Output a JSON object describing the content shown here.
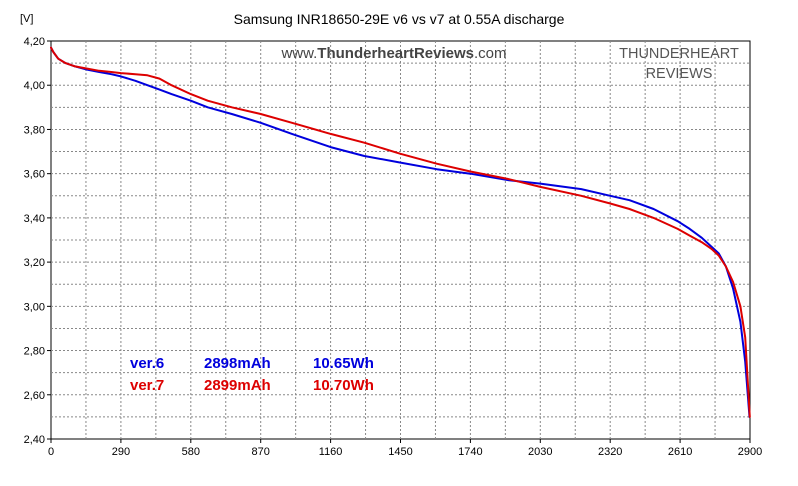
{
  "chart_data": {
    "type": "line",
    "title": "Samsung INR18650-29E v6 vs v7 at 0.55A discharge",
    "ylabel": "[V]",
    "xlabel": "",
    "xlim": [
      0,
      2900
    ],
    "ylim": [
      2.4,
      4.2
    ],
    "x_ticks": [
      "0",
      "290",
      "580",
      "870",
      "1160",
      "1450",
      "1740",
      "2030",
      "2320",
      "2610",
      "2900"
    ],
    "y_ticks": [
      "4,20",
      "4,00",
      "3,80",
      "3,60",
      "3,40",
      "3,20",
      "3,00",
      "2,80",
      "2,60",
      "2,40"
    ],
    "grid": true,
    "watermark_url_prefix": "www.",
    "watermark_url_brand": "ThunderheartReviews",
    "watermark_url_suffix": ".com",
    "watermark_brand_line1": "THUNDERHEART",
    "watermark_brand_line2": "REVIEWS",
    "series": [
      {
        "name": "ver.6",
        "capacity": "2898mAh",
        "energy": "10.65Wh",
        "color": "#0000dd",
        "x": [
          0,
          10,
          30,
          60,
          100,
          150,
          200,
          250,
          290,
          350,
          400,
          450,
          500,
          580,
          650,
          750,
          870,
          1000,
          1160,
          1300,
          1450,
          1600,
          1740,
          1900,
          2030,
          2200,
          2320,
          2400,
          2500,
          2600,
          2650,
          2700,
          2740,
          2770,
          2800,
          2830,
          2860,
          2880,
          2898
        ],
        "values": [
          4.17,
          4.15,
          4.12,
          4.1,
          4.085,
          4.07,
          4.06,
          4.05,
          4.04,
          4.02,
          4.0,
          3.98,
          3.96,
          3.93,
          3.9,
          3.87,
          3.83,
          3.78,
          3.72,
          3.68,
          3.65,
          3.62,
          3.6,
          3.57,
          3.555,
          3.53,
          3.5,
          3.48,
          3.44,
          3.385,
          3.35,
          3.31,
          3.27,
          3.24,
          3.18,
          3.08,
          2.93,
          2.75,
          2.5
        ]
      },
      {
        "name": "ver.7",
        "capacity": "2899mAh",
        "energy": "10.70Wh",
        "color": "#dd0000",
        "x": [
          0,
          10,
          30,
          60,
          100,
          150,
          200,
          250,
          290,
          350,
          400,
          450,
          500,
          580,
          650,
          750,
          870,
          1000,
          1160,
          1300,
          1450,
          1600,
          1740,
          1900,
          2030,
          2200,
          2320,
          2400,
          2500,
          2600,
          2650,
          2700,
          2740,
          2770,
          2800,
          2830,
          2860,
          2880,
          2899
        ],
        "values": [
          4.17,
          4.15,
          4.12,
          4.1,
          4.085,
          4.075,
          4.065,
          4.06,
          4.055,
          4.05,
          4.045,
          4.03,
          4.0,
          3.96,
          3.93,
          3.9,
          3.87,
          3.83,
          3.78,
          3.74,
          3.69,
          3.645,
          3.61,
          3.575,
          3.54,
          3.5,
          3.465,
          3.44,
          3.4,
          3.35,
          3.32,
          3.29,
          3.26,
          3.23,
          3.18,
          3.11,
          3.0,
          2.86,
          2.5
        ]
      }
    ]
  }
}
